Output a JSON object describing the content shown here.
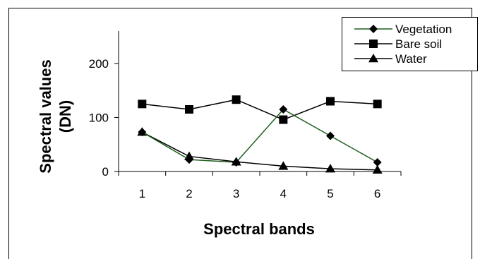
{
  "chart_data": {
    "type": "line",
    "title": "",
    "xlabel": "Spectral bands",
    "ylabel_line1": "Spectral values",
    "ylabel_line2": "(DN)",
    "categories": [
      "1",
      "2",
      "3",
      "4",
      "5",
      "6"
    ],
    "y_ticks": [
      "0",
      "100",
      "200"
    ],
    "ylim": [
      0,
      260
    ],
    "grid": false,
    "legend_position": "top-right",
    "series": [
      {
        "name": "Vegetation",
        "marker": "diamond",
        "line_color": "#1e5e1e",
        "values": [
          73,
          22,
          17,
          115,
          66,
          17
        ]
      },
      {
        "name": "Bare soil",
        "marker": "square",
        "line_color": "#000000",
        "values": [
          125,
          115,
          133,
          96,
          130,
          125
        ]
      },
      {
        "name": "Water",
        "marker": "triangle",
        "line_color": "#000000",
        "values": [
          73,
          28,
          18,
          10,
          5,
          3
        ]
      }
    ]
  }
}
